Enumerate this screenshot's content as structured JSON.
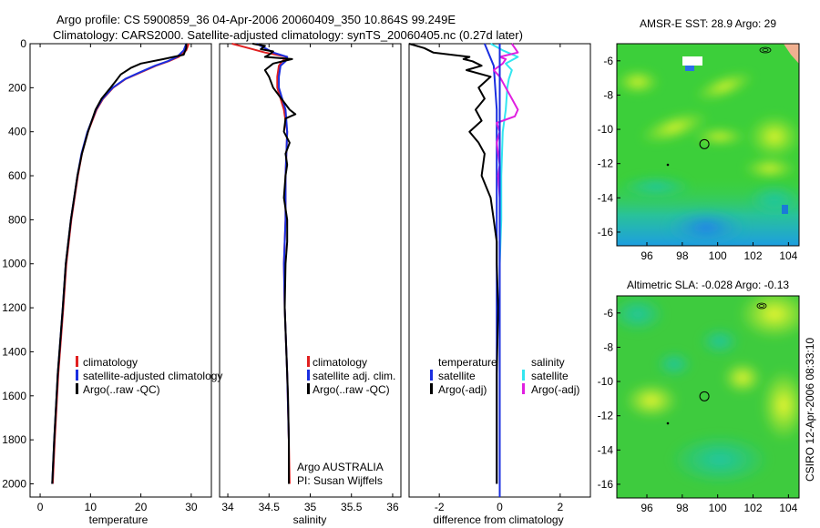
{
  "header": {
    "line1": "Argo profile: CS 5900859_36 04-Apr-2006 20060409_350 10.864S 99.249E",
    "line2": "Climatology: CARS2000. Satellite-adjusted climatology: synTS_20060405.nc (0.27d later)"
  },
  "side_text": "CSIRO 12-Apr-2006 08:33:10",
  "colors": {
    "climatology": "#e02020",
    "satellite": "#1a2ee0",
    "argo": "#000000",
    "sal_satellite": "#33e6f0",
    "sal_argo": "#e020e0"
  },
  "chart_data": [
    {
      "type": "line",
      "name": "temperature-profile",
      "xlabel": "temperature",
      "ylabel": "",
      "xlim": [
        -2,
        34
      ],
      "ylim": [
        2060,
        0
      ],
      "xticks": [
        0,
        10,
        20,
        30
      ],
      "yticks": [
        0,
        200,
        400,
        600,
        800,
        1000,
        1200,
        1400,
        1600,
        1800,
        2000
      ],
      "legend": [
        "climatology",
        "satellite-adjusted climatology",
        "Argo(..raw -QC)"
      ],
      "series": [
        {
          "name": "climatology",
          "depth": [
            0,
            30,
            60,
            80,
            100,
            130,
            160,
            200,
            250,
            300,
            400,
            500,
            600,
            800,
            1000,
            1200,
            1500,
            1800,
            2000
          ],
          "values": [
            29.5,
            29.0,
            27.5,
            25.5,
            23.0,
            20.0,
            17.0,
            14.5,
            12.5,
            11.2,
            9.5,
            8.3,
            7.5,
            6.2,
            5.2,
            4.6,
            3.6,
            2.9,
            2.5
          ]
        },
        {
          "name": "satellite-adjusted climatology",
          "depth": [
            0,
            30,
            60,
            80,
            100,
            130,
            160,
            200,
            250,
            300,
            400,
            500,
            600,
            800,
            1000,
            1200,
            1500,
            1800,
            2000
          ],
          "values": [
            29.0,
            28.5,
            27.2,
            25.3,
            22.8,
            19.8,
            16.9,
            14.4,
            12.4,
            11.1,
            9.4,
            8.2,
            7.4,
            6.1,
            5.1,
            4.5,
            3.5,
            2.8,
            2.4
          ]
        },
        {
          "name": "Argo(..raw -QC)",
          "depth": [
            0,
            20,
            50,
            70,
            90,
            110,
            140,
            170,
            200,
            250,
            300,
            400,
            500,
            600,
            800,
            1000,
            1200,
            1500,
            1800,
            2000
          ],
          "values": [
            29.0,
            29.0,
            28.5,
            24.5,
            20.0,
            18.0,
            16.0,
            15.0,
            14.0,
            12.2,
            11.0,
            9.5,
            8.3,
            7.4,
            6.1,
            5.1,
            4.5,
            3.5,
            2.8,
            2.4
          ]
        }
      ]
    },
    {
      "type": "line",
      "name": "salinity-profile",
      "xlabel": "salinity",
      "xlim": [
        33.9,
        36.1
      ],
      "ylim": [
        2060,
        0
      ],
      "xticks": [
        34,
        34.5,
        35,
        35.5,
        36
      ],
      "legend": [
        "climatology",
        "satellite adj. clim.",
        "Argo(..raw -QC)"
      ],
      "annotation": [
        "Argo AUSTRALIA",
        "PI: Susan Wijffels"
      ],
      "series": [
        {
          "name": "climatology",
          "depth": [
            0,
            20,
            40,
            60,
            80,
            100,
            150,
            200,
            300,
            400,
            600,
            800,
            1000,
            1200,
            1500,
            1800,
            2000
          ],
          "values": [
            34.05,
            34.25,
            34.45,
            34.72,
            34.66,
            34.62,
            34.6,
            34.6,
            34.68,
            34.72,
            34.7,
            34.7,
            34.68,
            34.69,
            34.72,
            34.74,
            34.75
          ]
        },
        {
          "name": "satellite adj. clim.",
          "depth": [
            0,
            20,
            40,
            60,
            80,
            100,
            150,
            200,
            300,
            400,
            600,
            800,
            1000,
            1200,
            1500,
            1800,
            2000
          ],
          "values": [
            34.35,
            34.45,
            34.55,
            34.72,
            34.7,
            34.64,
            34.62,
            34.62,
            34.7,
            34.72,
            34.7,
            34.7,
            34.68,
            34.69,
            34.72,
            34.74,
            34.74
          ]
        },
        {
          "name": "Argo(..raw -QC)",
          "depth": [
            0,
            10,
            25,
            35,
            50,
            60,
            70,
            90,
            120,
            150,
            200,
            250,
            300,
            320,
            340,
            400,
            450,
            500,
            550,
            600,
            700,
            800,
            900,
            1000,
            1200,
            1400,
            1600,
            1800,
            2000
          ],
          "values": [
            34.3,
            34.45,
            34.4,
            34.55,
            34.5,
            34.45,
            34.78,
            34.55,
            34.45,
            34.5,
            34.55,
            34.65,
            34.75,
            34.82,
            34.7,
            34.68,
            34.75,
            34.7,
            34.72,
            34.7,
            34.68,
            34.72,
            34.72,
            34.7,
            34.69,
            34.71,
            34.73,
            34.74,
            34.74
          ]
        }
      ]
    },
    {
      "type": "line",
      "name": "difference-profile",
      "xlabel": "difference from climatology",
      "xlim": [
        -3,
        3
      ],
      "ylim": [
        2060,
        0
      ],
      "xticks": [
        -2,
        0,
        2
      ],
      "legend": {
        "temperature": [
          "satellite",
          "Argo(-adj)"
        ],
        "salinity": [
          "satellite",
          "Argo(-adj)"
        ]
      },
      "legend_headers": [
        "temperature",
        "salinity"
      ],
      "series": [
        {
          "name": "temperature satellite",
          "depth": [
            0,
            100,
            300,
            600,
            1000,
            1500,
            2000
          ],
          "values": [
            -0.5,
            -0.2,
            -0.1,
            -0.1,
            -0.1,
            -0.1,
            -0.1
          ]
        },
        {
          "name": "temperature Argo(-adj)",
          "depth": [
            0,
            20,
            40,
            60,
            70,
            80,
            100,
            120,
            150,
            200,
            250,
            300,
            350,
            400,
            450,
            500,
            600,
            700,
            800,
            900,
            1000,
            1200,
            1500,
            1800,
            2000
          ],
          "values": [
            -3.0,
            -2.5,
            -2.2,
            -1.0,
            -1.2,
            -0.9,
            -0.6,
            -1.1,
            -0.3,
            -0.7,
            -0.5,
            -0.8,
            -0.6,
            -1.0,
            -0.7,
            -0.5,
            -0.6,
            -0.3,
            -0.2,
            -0.1,
            -0.1,
            -0.05,
            -0.1,
            -0.1,
            -0.1
          ]
        },
        {
          "name": "salinity satellite",
          "depth": [
            0,
            30,
            60,
            90,
            120,
            160,
            200,
            300,
            400,
            600,
            800,
            1000,
            1400,
            1800,
            2000
          ],
          "values": [
            -0.3,
            0.1,
            0.6,
            0.2,
            0.4,
            0.3,
            0.25,
            0.2,
            0.1,
            0.05,
            0.05,
            0.0,
            0.0,
            0.0,
            0.0
          ]
        },
        {
          "name": "salinity Argo(-adj)",
          "depth": [
            0,
            20,
            40,
            60,
            70,
            90,
            120,
            150,
            200,
            250,
            300,
            330,
            360,
            400,
            450,
            500,
            550,
            600,
            700,
            800
          ],
          "values": [
            0.4,
            0.5,
            0.6,
            0.0,
            0.2,
            0.1,
            -0.2,
            0.0,
            0.2,
            0.4,
            0.6,
            0.5,
            -0.1,
            0.0,
            -0.1,
            -0.05,
            0.0,
            -0.05,
            0.0,
            0.0
          ]
        }
      ]
    },
    {
      "type": "heatmap",
      "name": "sst-map",
      "title": "AMSR-E SST: 28.9 Argo: 29",
      "xlim": [
        94.3,
        104.6
      ],
      "ylim": [
        -16.8,
        -5.0
      ],
      "xticks": [
        96,
        98,
        100,
        102,
        104
      ],
      "yticks": [
        -6,
        -8,
        -10,
        -12,
        -14,
        -16
      ],
      "profile_location": [
        99.249,
        -10.864
      ]
    },
    {
      "type": "heatmap",
      "name": "sla-map",
      "title": "Altimetric SLA: -0.028 Argo: -0.13",
      "xlim": [
        94.3,
        104.6
      ],
      "ylim": [
        -16.8,
        -5.0
      ],
      "xticks": [
        96,
        98,
        100,
        102,
        104
      ],
      "yticks": [
        -6,
        -8,
        -10,
        -12,
        -14,
        -16
      ],
      "profile_location": [
        99.249,
        -10.864
      ]
    }
  ]
}
